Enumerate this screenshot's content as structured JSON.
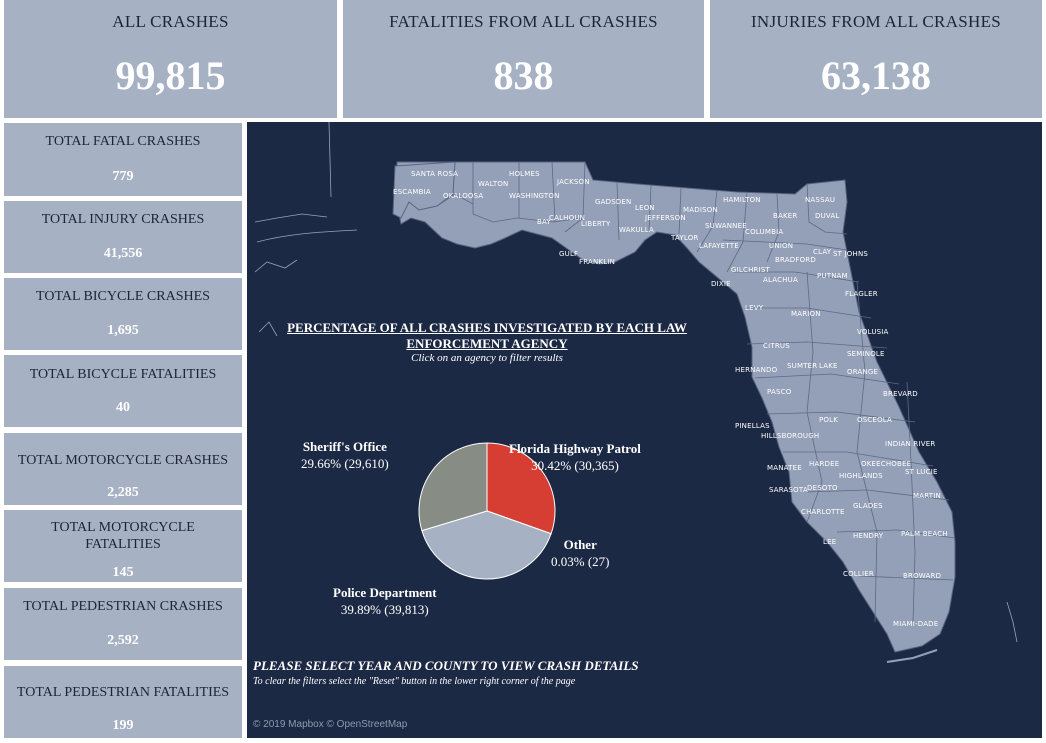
{
  "kpis": {
    "all_crashes": {
      "label": "ALL CRASHES",
      "value": "99,815"
    },
    "fatalities": {
      "label": "FATALITIES FROM ALL CRASHES",
      "value": "838"
    },
    "injuries": {
      "label": "INJURIES FROM ALL CRASHES",
      "value": "63,138"
    }
  },
  "side_stats": [
    {
      "label": "TOTAL FATAL CRASHES",
      "value": "779"
    },
    {
      "label": "TOTAL INJURY CRASHES",
      "value": "41,556"
    },
    {
      "label": "TOTAL BICYCLE CRASHES",
      "value": "1,695"
    },
    {
      "label": "TOTAL BICYCLE FATALITIES",
      "value": "40"
    },
    {
      "label": "TOTAL MOTORCYCLE CRASHES",
      "value": "2,285"
    },
    {
      "label": "TOTAL MOTORCYCLE FATALITIES",
      "value": "145"
    },
    {
      "label": "TOTAL PEDESTRIAN CRASHES",
      "value": "2,592"
    },
    {
      "label": "TOTAL PEDESTRIAN FATALITIES",
      "value": "199"
    }
  ],
  "map": {
    "counties": [
      "SANTA ROSA",
      "HOLMES",
      "JACKSON",
      "WALTON",
      "OKALOOSA",
      "ESCAMBIA",
      "WASHINGTON",
      "GADSDEN",
      "LEON",
      "CALHOUN",
      "BAY",
      "LIBERTY",
      "JEFFERSON",
      "MADISON",
      "HAMILTON",
      "NASSAU",
      "DUVAL",
      "BAKER",
      "SUWANNEE",
      "WAKULLA",
      "TAYLOR",
      "COLUMBIA",
      "UNION",
      "CLAY",
      "ST JOHNS",
      "BRADFORD",
      "LAFAYETTE",
      "GULF",
      "FRANKLIN",
      "GILCHRIST",
      "ALACHUA",
      "PUTNAM",
      "DIXIE",
      "FLAGLER",
      "LEVY",
      "MARION",
      "VOLUSIA",
      "CITRUS",
      "SEMINOLE",
      "HERNANDO",
      "SUMTER",
      "LAKE",
      "ORANGE",
      "PASCO",
      "BREVARD",
      "PINELLAS",
      "HILLSBOROUGH",
      "POLK",
      "OSCEOLA",
      "INDIAN RIVER",
      "MANATEE",
      "HARDEE",
      "OKEECHOBEE",
      "ST LUCIE",
      "HIGHLANDS",
      "SARASOTA",
      "MARTIN",
      "DESOTO",
      "CHARLOTTE",
      "GLADES",
      "LEE",
      "HENDRY",
      "PALM BEACH",
      "COLLIER",
      "BROWARD",
      "MIAMI-DADE"
    ],
    "pie_title": "PERCENTAGE OF ALL CRASHES INVESTIGATED BY EACH LAW ENFORCEMENT AGENCY",
    "pie_subtitle": "Click on an agency to filter results",
    "note_title": "PLEASE SELECT YEAR AND COUNTY TO VIEW CRASH DETAILS",
    "note_sub": "To clear the filters select the \"Reset\" button in the lower right corner of the page",
    "attribution": "© 2019 Mapbox © OpenStreetMap"
  },
  "chart_data": {
    "type": "pie",
    "title": "PERCENTAGE OF ALL CRASHES INVESTIGATED BY EACH LAW ENFORCEMENT AGENCY",
    "slices": [
      {
        "name": "Florida Highway Patrol",
        "percent": 30.42,
        "count": "30,365",
        "text": "30.42% (30,365)",
        "color": "#d63d33"
      },
      {
        "name": "Other",
        "percent": 0.03,
        "count": "27",
        "text": "0.03% (27)",
        "color": "#e8e8e8"
      },
      {
        "name": "Police Department",
        "percent": 39.89,
        "count": "39,813",
        "text": "39.89% (39,813)",
        "color": "#a7b1c4"
      },
      {
        "name": "Sheriff's Office",
        "percent": 29.66,
        "count": "29,610",
        "text": "29.66% (29,610)",
        "color": "#878d84"
      }
    ]
  },
  "colors": {
    "panel": "#a7b1c4",
    "map_bg": "#1c2944",
    "land": "#94a0b8",
    "accent": "#d63d33"
  }
}
